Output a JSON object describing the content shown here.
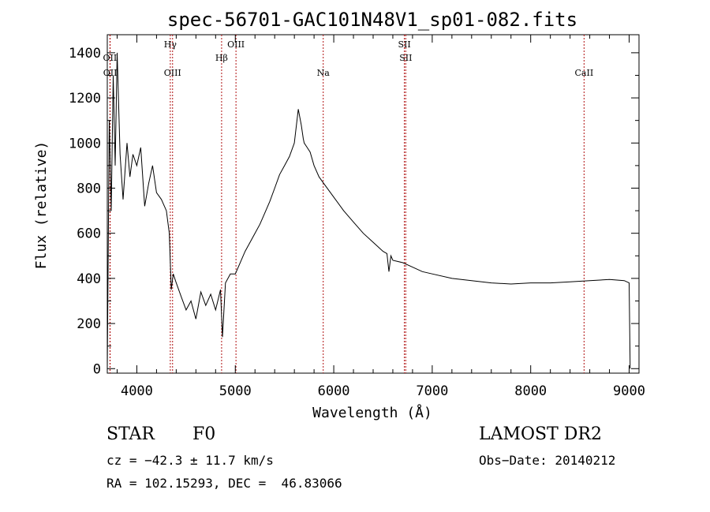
{
  "chart_data": {
    "type": "line",
    "title": "spec-56701-GAC101N48V1_sp01-082.fits",
    "xlabel": "Wavelength (Å)",
    "ylabel": "Flux (relative)",
    "xlim": [
      3700,
      9100
    ],
    "ylim": [
      -20,
      1480
    ],
    "x_ticks": [
      4000,
      5000,
      6000,
      7000,
      8000,
      9000
    ],
    "x_tick_labels": [
      "4000",
      "5000",
      "6000",
      "7000",
      "8000",
      "9000"
    ],
    "y_ticks": [
      0,
      200,
      400,
      600,
      800,
      1000,
      1200,
      1400
    ],
    "y_tick_labels": [
      "0",
      "200",
      "400",
      "600",
      "800",
      "1000",
      "1200",
      "1400"
    ],
    "grid": false,
    "line_color": "#000000",
    "marker_color": "#b01010",
    "series": [
      {
        "x": [
          3700,
          3720,
          3740,
          3760,
          3780,
          3800,
          3830,
          3860,
          3900,
          3930,
          3960,
          4000,
          4040,
          4080,
          4120,
          4160,
          4200,
          4250,
          4300,
          4330,
          4350,
          4370,
          4400,
          4450,
          4500,
          4550,
          4600,
          4650,
          4700,
          4750,
          4800,
          4850,
          4870,
          4900,
          4950,
          5000,
          5050,
          5100,
          5150,
          5200,
          5250,
          5300,
          5350,
          5400,
          5450,
          5500,
          5550,
          5600,
          5640,
          5670,
          5690,
          5700,
          5730,
          5760,
          5800,
          5850,
          5900,
          5950,
          6000,
          6100,
          6200,
          6300,
          6400,
          6500,
          6540,
          6560,
          6580,
          6600,
          6700,
          6800,
          6900,
          7000,
          7200,
          7400,
          7600,
          7800,
          8000,
          8200,
          8400,
          8600,
          8800,
          8950,
          9000,
          9010
        ],
        "y": [
          0,
          1100,
          700,
          1300,
          900,
          1400,
          950,
          750,
          1000,
          850,
          950,
          900,
          980,
          720,
          820,
          900,
          780,
          750,
          700,
          600,
          350,
          420,
          380,
          320,
          260,
          300,
          220,
          340,
          280,
          330,
          260,
          350,
          140,
          380,
          420,
          420,
          470,
          520,
          560,
          600,
          640,
          690,
          740,
          800,
          860,
          900,
          940,
          1000,
          1150,
          1080,
          1020,
          1000,
          980,
          960,
          900,
          850,
          820,
          790,
          760,
          700,
          650,
          600,
          560,
          520,
          510,
          430,
          500,
          480,
          470,
          450,
          430,
          420,
          400,
          390,
          380,
          375,
          380,
          380,
          385,
          390,
          395,
          390,
          380,
          0
        ]
      }
    ],
    "annotations": [
      {
        "label": "OII",
        "x": 3727,
        "row": 1
      },
      {
        "label": "OII",
        "x": 3729,
        "row": 2
      },
      {
        "label": "Hγ",
        "x": 4340,
        "row": 0
      },
      {
        "label": "OIII",
        "x": 4363,
        "row": 2
      },
      {
        "label": "Hβ",
        "x": 4861,
        "row": 1
      },
      {
        "label": "OIII",
        "x": 5007,
        "row": 0
      },
      {
        "label": "Na",
        "x": 5893,
        "row": 2
      },
      {
        "label": "SII",
        "x": 6717,
        "row": 0
      },
      {
        "label": "SII",
        "x": 6731,
        "row": 1
      },
      {
        "label": "CaII",
        "x": 8542,
        "row": 2
      }
    ]
  },
  "footer": {
    "object_class": "STAR",
    "subclass": "F0",
    "cz": "cz = −42.3 ± 11.7 km/s",
    "coords": "RA = 102.15293, DEC =  46.83066",
    "survey": "LAMOST DR2",
    "obs_date": "Obs−Date: 20140212"
  }
}
